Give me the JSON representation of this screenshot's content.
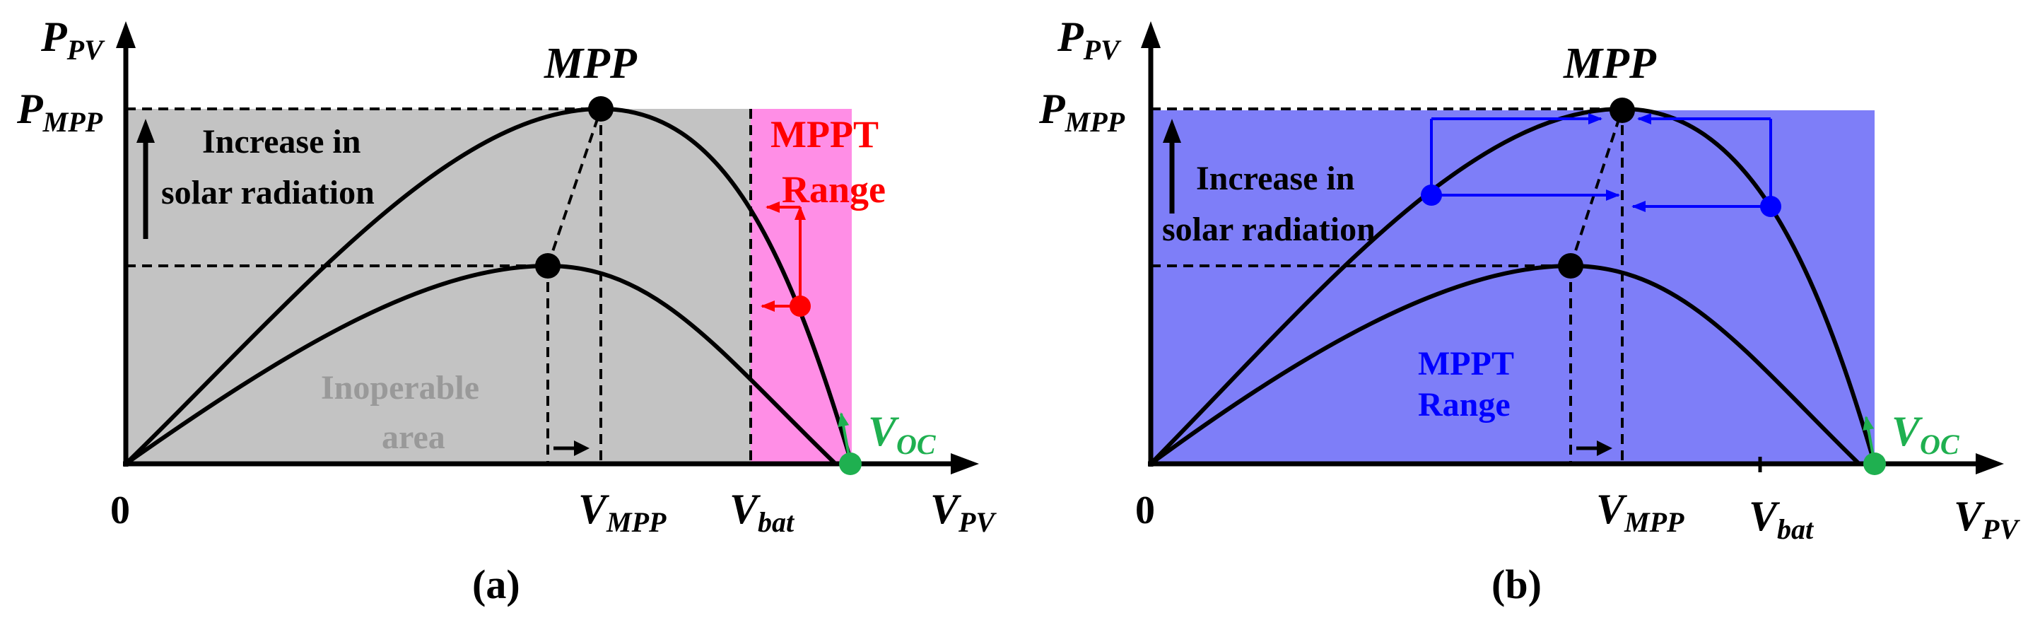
{
  "panel_a": {
    "caption": "(a)",
    "y_axis_label": "P",
    "y_axis_sub": "PV",
    "x_axis_label": "V",
    "x_axis_sub": "PV",
    "origin_label": "0",
    "pmpp_label": "P",
    "pmpp_sub": "MPP",
    "mpp_label": "MPP",
    "vmpp_label": "V",
    "vmpp_sub": "MPP",
    "vbat_label": "V",
    "vbat_sub": "bat",
    "voc_label": "V",
    "voc_sub": "OC",
    "increase_line1": "Increase in",
    "increase_line2": "solar radiation",
    "mppt_line1": "MPPT",
    "mppt_line2": "Range",
    "inoperable_line1": "Inoperable",
    "inoperable_line2": "area"
  },
  "panel_b": {
    "caption": "(b)",
    "y_axis_label": "P",
    "y_axis_sub": "PV",
    "x_axis_label": "V",
    "x_axis_sub": "PV",
    "origin_label": "0",
    "pmpp_label": "P",
    "pmpp_sub": "MPP",
    "mpp_label": "MPP",
    "vmpp_label": "V",
    "vmpp_sub": "MPP",
    "vbat_label": "V",
    "vbat_sub": "bat",
    "voc_label": "V",
    "voc_sub": "OC",
    "increase_line1": "Increase in",
    "increase_line2": "solar radiation",
    "mppt_line1": "MPPT",
    "mppt_line2": "Range"
  },
  "colors": {
    "inoperable_fill": "#c3c3c3",
    "mppt_range_fill_a": "#ff8ee6",
    "mppt_range_fill_b": "#7e7ef8",
    "mppt_red": "#ff0000",
    "mppt_blue": "#0000ff",
    "voc_green": "#1fb050",
    "inoperable_text": "#999999"
  }
}
